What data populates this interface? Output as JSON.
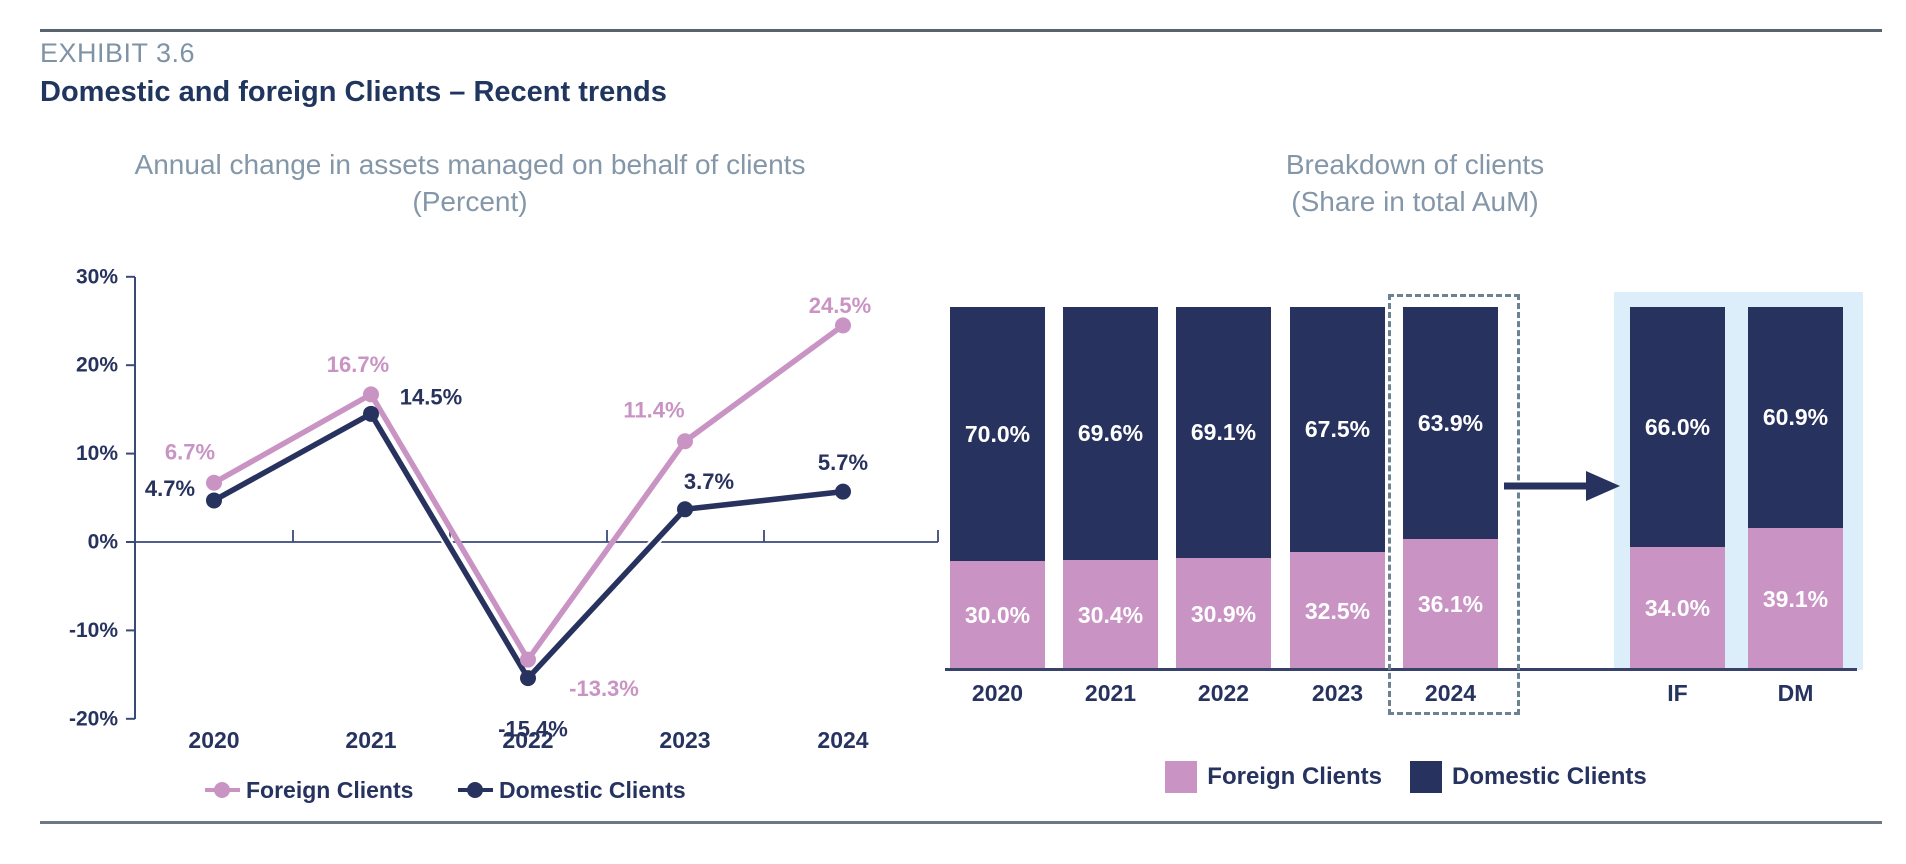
{
  "header": {
    "exhibit": "EXHIBIT 3.6",
    "title": "Domestic and foreign Clients – Recent trends"
  },
  "colors": {
    "foreign_pink": "#c994c4",
    "domestic_navy": "#28325e",
    "title_gray": "#8497a9",
    "exhibit_gray": "#7e93a6",
    "heading_navy": "#20365f",
    "axis_navy": "#27335f",
    "highlight_panel_blue": "#ddeefb",
    "dashed_border": "#6a8292",
    "bar_label_white": "#ffffff"
  },
  "chart_data": [
    {
      "type": "line",
      "title": "Annual change in assets managed on behalf of clients",
      "subtitle": "(Percent)",
      "categories": [
        "2020",
        "2021",
        "2022",
        "2023",
        "2024"
      ],
      "series": [
        {
          "name": "Foreign Clients",
          "color": "#c994c4",
          "values": [
            6.7,
            16.7,
            -13.3,
            11.4,
            24.5
          ],
          "labels": [
            "6.7%",
            "16.7%",
            "-13.3%",
            "11.4%",
            "24.5%"
          ]
        },
        {
          "name": "Domestic Clients",
          "color": "#28325e",
          "values": [
            4.7,
            14.5,
            -15.4,
            3.7,
            5.7
          ],
          "labels": [
            "4.7%",
            "14.5%",
            "-15.4%",
            "3.7%",
            "5.7%"
          ]
        }
      ],
      "y_ticks": [
        {
          "value": 30,
          "label": "30%"
        },
        {
          "value": 20,
          "label": "20%"
        },
        {
          "value": 10,
          "label": "10%"
        },
        {
          "value": 0,
          "label": "0%"
        },
        {
          "value": -10,
          "label": "-10%"
        },
        {
          "value": -20,
          "label": "-20%"
        }
      ],
      "ylim": [
        -20,
        30
      ],
      "grid": false,
      "legend_position": "bottom"
    },
    {
      "type": "bar",
      "stacked": true,
      "title": "Breakdown of clients",
      "subtitle": "(Share in total AuM)",
      "categories": [
        "2020",
        "2021",
        "2022",
        "2023",
        "2024",
        "IF",
        "DM"
      ],
      "series": [
        {
          "name": "Foreign Clients",
          "color": "#c994c4",
          "values": [
            30.0,
            30.4,
            30.9,
            32.5,
            36.1,
            34.0,
            39.1
          ],
          "labels": [
            "30.0%",
            "30.4%",
            "30.9%",
            "32.5%",
            "36.1%",
            "34.0%",
            "39.1%"
          ]
        },
        {
          "name": "Domestic Clients",
          "color": "#28325e",
          "values": [
            70.0,
            69.6,
            69.1,
            67.5,
            63.9,
            66.0,
            60.9
          ],
          "labels": [
            "70.0%",
            "69.6%",
            "69.1%",
            "67.5%",
            "63.9%",
            "66.0%",
            "60.9%"
          ]
        }
      ],
      "highlighted_category": "2024",
      "panel_categories": [
        "IF",
        "DM"
      ],
      "ylim": [
        0,
        100
      ],
      "legend_position": "bottom",
      "legend": [
        "Foreign Clients",
        "Domestic Clients"
      ]
    }
  ]
}
